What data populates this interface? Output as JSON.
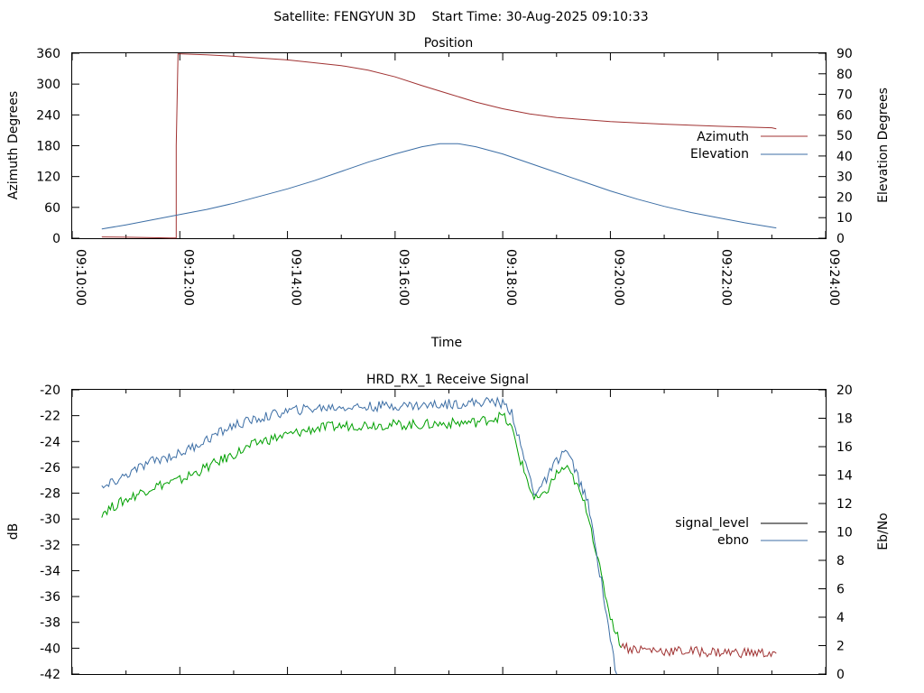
{
  "header": {
    "title": "Satellite: FENGYUN 3D    Start Time: 30-Aug-2025 09:10:33"
  },
  "chart_data": [
    {
      "type": "line",
      "title": "Position",
      "xlabel": "Time",
      "ylabel": "Azimuth Degrees",
      "y2label": "Elevation Degrees",
      "xticks": [
        "09:10:00",
        "09:12:00",
        "09:14:00",
        "09:16:00",
        "09:18:00",
        "09:20:00",
        "09:22:00",
        "09:24:00"
      ],
      "xlim": [
        "09:10:00",
        "09:24:00"
      ],
      "ylim": [
        0,
        360
      ],
      "y2lim": [
        0,
        90
      ],
      "yticks": [
        0,
        60,
        120,
        180,
        240,
        300,
        360
      ],
      "y2ticks": [
        0,
        10,
        20,
        30,
        40,
        50,
        60,
        70,
        80,
        90
      ],
      "legend": "right",
      "grid": false,
      "series": [
        {
          "name": "Azimuth",
          "axis": "left",
          "color": "#a03232",
          "points": [
            [
              "09:10:33",
              2.5
            ],
            [
              "09:11:00",
              2.0
            ],
            [
              "09:11:30",
              1.0
            ],
            [
              "09:11:49",
              0.5
            ],
            [
              "09:11:56",
              0.5
            ],
            [
              "09:11:56",
              180
            ],
            [
              "09:11:58",
              359
            ],
            [
              "09:12:30",
              357
            ],
            [
              "09:13:00",
              354
            ],
            [
              "09:14:00",
              347
            ],
            [
              "09:15:00",
              336
            ],
            [
              "09:15:30",
              327
            ],
            [
              "09:16:00",
              314
            ],
            [
              "09:16:30",
              297
            ],
            [
              "09:17:00",
              281
            ],
            [
              "09:17:30",
              265
            ],
            [
              "09:18:00",
              252
            ],
            [
              "09:18:30",
              242
            ],
            [
              "09:19:00",
              235
            ],
            [
              "09:20:00",
              227
            ],
            [
              "09:21:00",
              222
            ],
            [
              "09:22:00",
              218
            ],
            [
              "09:23:00",
              215
            ],
            [
              "09:23:05",
              213
            ]
          ]
        },
        {
          "name": "Elevation",
          "axis": "right",
          "color": "#3c6ea5",
          "points": [
            [
              "09:10:33",
              4.5
            ],
            [
              "09:11:00",
              6.5
            ],
            [
              "09:11:30",
              9.0
            ],
            [
              "09:12:00",
              11.5
            ],
            [
              "09:12:30",
              14.0
            ],
            [
              "09:13:00",
              17.0
            ],
            [
              "09:13:30",
              20.5
            ],
            [
              "09:14:00",
              24.0
            ],
            [
              "09:14:30",
              28.0
            ],
            [
              "09:15:00",
              32.5
            ],
            [
              "09:15:30",
              37.0
            ],
            [
              "09:16:00",
              41.0
            ],
            [
              "09:16:30",
              44.5
            ],
            [
              "09:16:50",
              46.0
            ],
            [
              "09:17:10",
              46.0
            ],
            [
              "09:17:30",
              44.5
            ],
            [
              "09:18:00",
              41.0
            ],
            [
              "09:18:30",
              36.5
            ],
            [
              "09:19:00",
              32.0
            ],
            [
              "09:19:30",
              27.5
            ],
            [
              "09:20:00",
              23.0
            ],
            [
              "09:20:30",
              19.0
            ],
            [
              "09:21:00",
              15.5
            ],
            [
              "09:21:30",
              12.5
            ],
            [
              "09:22:00",
              10.0
            ],
            [
              "09:22:30",
              7.5
            ],
            [
              "09:23:05",
              5.0
            ]
          ]
        }
      ]
    },
    {
      "type": "line",
      "title": "HRD_RX_1 Receive Signal",
      "xlabel": "",
      "ylabel": "dB",
      "y2label": "Eb/No",
      "xlim": [
        "09:10:00",
        "09:24:00"
      ],
      "ylim": [
        -42,
        -20
      ],
      "y2lim": [
        0,
        20
      ],
      "yticks": [
        -42,
        -40,
        -38,
        -36,
        -34,
        -32,
        -30,
        -28,
        -26,
        -24,
        -22,
        -20
      ],
      "y2ticks": [
        0,
        2,
        4,
        6,
        8,
        10,
        12,
        14,
        16,
        18,
        20
      ],
      "legend": "right",
      "grid": false,
      "series": [
        {
          "name": "signal_level",
          "axis": "left",
          "color": "#00a000",
          "low_color": "#a03232",
          "noise": 0.4,
          "points": [
            [
              "09:10:33",
              -29.5
            ],
            [
              "09:11:00",
              -28.5
            ],
            [
              "09:11:30",
              -27.5
            ],
            [
              "09:12:00",
              -27.0
            ],
            [
              "09:12:30",
              -26.0
            ],
            [
              "09:13:00",
              -25.0
            ],
            [
              "09:13:30",
              -24.0
            ],
            [
              "09:14:00",
              -23.5
            ],
            [
              "09:14:30",
              -23.0
            ],
            [
              "09:15:00",
              -22.8
            ],
            [
              "09:15:30",
              -22.7
            ],
            [
              "09:16:00",
              -22.7
            ],
            [
              "09:16:30",
              -22.7
            ],
            [
              "09:17:00",
              -22.6
            ],
            [
              "09:17:30",
              -22.5
            ],
            [
              "09:17:50",
              -22.2
            ],
            [
              "09:18:00",
              -22.0
            ],
            [
              "09:18:10",
              -23.0
            ],
            [
              "09:18:20",
              -25.5
            ],
            [
              "09:18:35",
              -28.5
            ],
            [
              "09:18:45",
              -28.3
            ],
            [
              "09:19:00",
              -26.5
            ],
            [
              "09:19:10",
              -26.0
            ],
            [
              "09:19:20",
              -27.0
            ],
            [
              "09:19:35",
              -29.5
            ],
            [
              "09:19:50",
              -34.5
            ],
            [
              "09:20:00",
              -37.5
            ],
            [
              "09:20:10",
              -39.5
            ],
            [
              "09:20:20",
              -40.0
            ],
            [
              "09:21:00",
              -40.2
            ],
            [
              "09:22:00",
              -40.3
            ],
            [
              "09:23:05",
              -40.4
            ]
          ]
        },
        {
          "name": "ebno",
          "axis": "right",
          "color": "#3c6ea5",
          "noise": 0.35,
          "points": [
            [
              "09:10:33",
              13.0
            ],
            [
              "09:11:00",
              14.0
            ],
            [
              "09:11:30",
              15.0
            ],
            [
              "09:12:00",
              15.5
            ],
            [
              "09:12:30",
              16.5
            ],
            [
              "09:13:00",
              17.5
            ],
            [
              "09:13:30",
              18.0
            ],
            [
              "09:14:00",
              18.5
            ],
            [
              "09:14:30",
              18.7
            ],
            [
              "09:15:00",
              18.8
            ],
            [
              "09:15:30",
              18.8
            ],
            [
              "09:16:00",
              18.9
            ],
            [
              "09:16:30",
              18.9
            ],
            [
              "09:17:00",
              19.0
            ],
            [
              "09:17:30",
              19.1
            ],
            [
              "09:17:50",
              19.2
            ],
            [
              "09:18:00",
              19.0
            ],
            [
              "09:18:10",
              18.5
            ],
            [
              "09:18:20",
              16.0
            ],
            [
              "09:18:35",
              12.8
            ],
            [
              "09:18:45",
              13.3
            ],
            [
              "09:19:00",
              15.0
            ],
            [
              "09:19:10",
              15.8
            ],
            [
              "09:19:20",
              14.5
            ],
            [
              "09:19:35",
              12.0
            ],
            [
              "09:19:50",
              6.5
            ],
            [
              "09:20:00",
              2.5
            ],
            [
              "09:20:07",
              0.0
            ]
          ]
        }
      ]
    }
  ]
}
